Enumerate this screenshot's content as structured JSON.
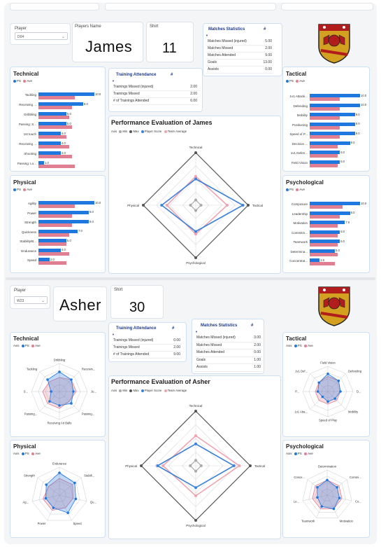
{
  "colors": {
    "ps": "#1f77e0",
    "ave": "#e07f91",
    "min": "#a9a9a9",
    "max": "#555555",
    "score": "#3b82d8",
    "team": "#f0a3b0"
  },
  "legend": {
    "axis": "Axis",
    "min": "Min",
    "max": "Max",
    "score": "Player Score",
    "team": "Team Average",
    "ps": "PS",
    "ave": "Ave"
  },
  "p1": {
    "player_label": "Player",
    "player_value": "D04",
    "name_label": "Players Name",
    "name": "James",
    "shirt_label": "Shirt",
    "shirt": "11",
    "matches": {
      "title": "Matches Statistics",
      "hash": "#",
      "rows": [
        [
          "Matches Missed (injured)",
          "5.00"
        ],
        [
          "Matches Missed",
          "2.00"
        ],
        [
          "Matches Attended",
          "9.00"
        ],
        [
          "Goals",
          "13.00"
        ],
        [
          "Assists",
          "0.00"
        ]
      ]
    },
    "training": {
      "title": "Training Attendance",
      "hash": "#",
      "rows": [
        [
          "Trainings Missed (injured)",
          "2.00"
        ],
        [
          "Trainings Missed",
          "2.00"
        ],
        [
          "# of Trainings Attended",
          "6.00"
        ]
      ]
    },
    "perf_title": "Performance Evaluation of James",
    "radar": {
      "axes": [
        "Technical",
        "Tactical",
        "Psychological",
        "Physical"
      ],
      "min": [
        1,
        1,
        1,
        1
      ],
      "max": [
        10,
        10,
        10,
        10
      ],
      "score": [
        5,
        9,
        5,
        6.5
      ],
      "team": [
        5.5,
        6,
        5.5,
        5.5
      ]
    },
    "technical": {
      "title": "Technical",
      "bars": [
        [
          "Tackling",
          10,
          6.5
        ],
        [
          "Receiving ...",
          8,
          6
        ],
        [
          "Dribbling",
          5,
          5.5
        ],
        [
          "Passing: S...",
          5,
          6
        ],
        [
          "1st touch",
          4,
          5
        ],
        [
          "Receiving ...",
          4,
          5.5
        ],
        [
          "Shooting",
          4,
          6
        ],
        [
          "Passing: Lo...",
          1,
          6.5
        ]
      ],
      "labels": [
        "10.0",
        "8.0",
        "5.0",
        "5.0",
        "4.0",
        "4.0",
        "4.0",
        "1.0"
      ]
    },
    "physical": {
      "title": "Physical",
      "bars": [
        [
          "Agility",
          10,
          6.5
        ],
        [
          "Power",
          9,
          6
        ],
        [
          "Strength",
          9,
          6
        ],
        [
          "Quickness",
          7,
          5.5
        ],
        [
          "Stability/B...",
          5,
          5
        ],
        [
          "Endurance",
          4,
          5.5
        ],
        [
          "Speed",
          2,
          5
        ]
      ],
      "labels": [
        "10.0",
        "9.0",
        "9.0",
        "7.0",
        "5.0",
        "4.0",
        "2.0"
      ]
    },
    "tactical": {
      "title": "Tactical",
      "bars": [
        [
          "1v1 Attacki...",
          10,
          6
        ],
        [
          "Defending",
          10,
          6
        ],
        [
          "Mobility",
          9,
          6
        ],
        [
          "Positioning",
          9,
          6
        ],
        [
          "Speed of P...",
          9,
          6
        ],
        [
          "Decision ...",
          8,
          5.5
        ],
        [
          "1v1 Defen...",
          6,
          5.5
        ],
        [
          "Field Vision",
          6,
          5.5
        ]
      ],
      "labels": [
        "10.0",
        "10.0",
        "9.0",
        "9.0",
        "9.0",
        "8.0",
        "6.0",
        "6.0"
      ]
    },
    "psychological": {
      "title": "Psychological",
      "bars": [
        [
          "Composure",
          10,
          6.5
        ],
        [
          "Leadership",
          8,
          6
        ],
        [
          "Motivation",
          7,
          5.5
        ],
        [
          "Commitm...",
          6,
          5.5
        ],
        [
          "Teamwork",
          6,
          5.5
        ],
        [
          "Determina...",
          5,
          5.5
        ],
        [
          "Concentrat...",
          2,
          5
        ]
      ],
      "labels": [
        "10.0",
        "8.0",
        "7.0",
        "6.0",
        "6.0",
        "5.0",
        "2.0"
      ]
    }
  },
  "p2": {
    "player_label": "Player",
    "player_value": "W23",
    "name": "Asher",
    "shirt_label": "Shirt",
    "shirt": "30",
    "training": {
      "title": "Training Attendance",
      "hash": "#",
      "rows": [
        [
          "Trainings Missed (injured)",
          "0.00"
        ],
        [
          "Trainings Missed",
          "2.00"
        ],
        [
          "# of Trainings Attended",
          "9.00"
        ]
      ]
    },
    "matches": {
      "title": "Matches Statistics",
      "hash": "#",
      "rows": [
        [
          "Matches Missed (injured)",
          "3.00"
        ],
        [
          "Matches Missed",
          "2.00"
        ],
        [
          "Matches Attended",
          "0.00"
        ],
        [
          "Goals",
          "1.00"
        ],
        [
          "Assists",
          "1.00"
        ]
      ]
    },
    "perf_title": "Performance Evaluation of Asher",
    "radar": {
      "axes": [
        "Technical",
        "Tactical",
        "Psychological",
        "Physical"
      ],
      "min": [
        1,
        1,
        1,
        1
      ],
      "max": [
        10,
        10,
        10,
        10
      ],
      "score": [
        4,
        7,
        4,
        7
      ],
      "team": [
        5.5,
        8,
        5.5,
        6
      ]
    },
    "technical": {
      "title": "Technical",
      "axes": [
        "Dribbling",
        "Receivin...",
        "Ju...",
        "Passing...",
        "Receiving Air Balls",
        "Passing...",
        "S...",
        "Tackling"
      ],
      "ps": [
        7,
        6,
        5,
        6,
        5,
        5,
        3,
        6
      ],
      "ave": [
        5,
        6,
        6,
        5,
        6,
        6,
        6,
        5
      ]
    },
    "physical": {
      "title": "Physical",
      "axes": [
        "Endurance",
        "Stabili...",
        "Qu...",
        "Speed",
        "Power",
        "Ag...",
        "Strength"
      ],
      "ps": [
        8,
        7,
        6,
        7,
        5,
        5,
        6
      ],
      "ave": [
        6,
        6,
        5,
        5,
        6,
        6,
        5
      ]
    },
    "tactical": {
      "title": "Tactical",
      "axes": [
        "Field Vision",
        "Defending",
        "D...",
        "Mobility",
        "Speed of Play",
        "1v1 Atta...",
        "P...",
        "1v1 Def..."
      ],
      "ps": [
        7,
        6,
        5,
        4,
        4,
        3,
        4,
        5
      ],
      "ave": [
        6,
        6,
        5,
        5,
        5,
        5,
        5,
        5
      ]
    },
    "psychological": {
      "title": "Psychological",
      "axes": [
        "Determination",
        "Commi...",
        "Co...",
        "Motivation",
        "Teamwork",
        "Le...",
        "Conce..."
      ],
      "ps": [
        6,
        5,
        5,
        6,
        5,
        4,
        5
      ],
      "ave": [
        6,
        6,
        6,
        6,
        6,
        6,
        6
      ]
    }
  }
}
